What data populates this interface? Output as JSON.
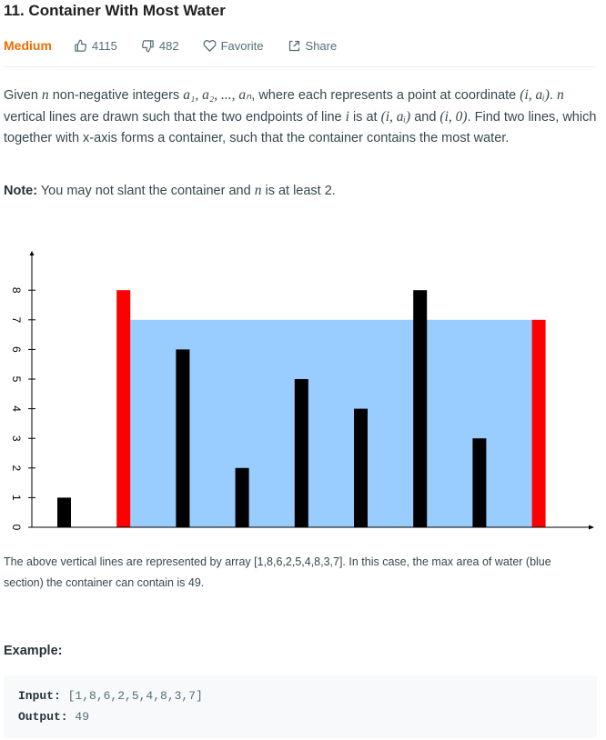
{
  "problem": {
    "title": "11. Container With Most Water",
    "difficulty": "Medium",
    "likes": "4115",
    "dislikes": "482",
    "favorite_label": "Favorite",
    "share_label": "Share"
  },
  "description": {
    "p1_a": "Given ",
    "n": "n",
    "p1_b": " non-negative integers ",
    "seq": "a₁, a₂, ..., aₙ",
    "p1_c": ", where each represents a point at coordinate ",
    "coord": "(i, aᵢ)",
    "p1_d": ". ",
    "p1_e": " vertical lines are drawn such that the two endpoints of line ",
    "i": "i",
    "p1_f": " is at ",
    "endpoint1": "(i, aᵢ)",
    "p1_g": " and ",
    "endpoint2": "(i, 0)",
    "p1_h": ". Find two lines, which together with x-axis forms a container, such that the container contains the most water."
  },
  "note": {
    "label": "Note:",
    "text_a": " You may not slant the container and ",
    "n": "n",
    "text_b": " is at least 2."
  },
  "chart_data": {
    "type": "bar",
    "title": "",
    "xlabel": "",
    "ylabel": "",
    "ylim": [
      0,
      8
    ],
    "y_ticks": [
      "0",
      "1",
      "2",
      "3",
      "4",
      "5",
      "6",
      "7",
      "8"
    ],
    "values": [
      1,
      8,
      6,
      2,
      5,
      4,
      8,
      3,
      7
    ],
    "highlighted_indices": [
      1,
      8
    ],
    "water_level": 7,
    "colors": {
      "bar": "#000000",
      "highlight": "#ff0000",
      "water": "#99ccff"
    }
  },
  "caption": "The above vertical lines are represented by array [1,8,6,2,5,4,8,3,7]. In this case, the max area of water (blue section) the container can contain is 49.",
  "example": {
    "label": "Example:",
    "input_label": "Input:",
    "input_value": " [1,8,6,2,5,4,8,3,7]",
    "output_label": "Output:",
    "output_value": " 49"
  }
}
